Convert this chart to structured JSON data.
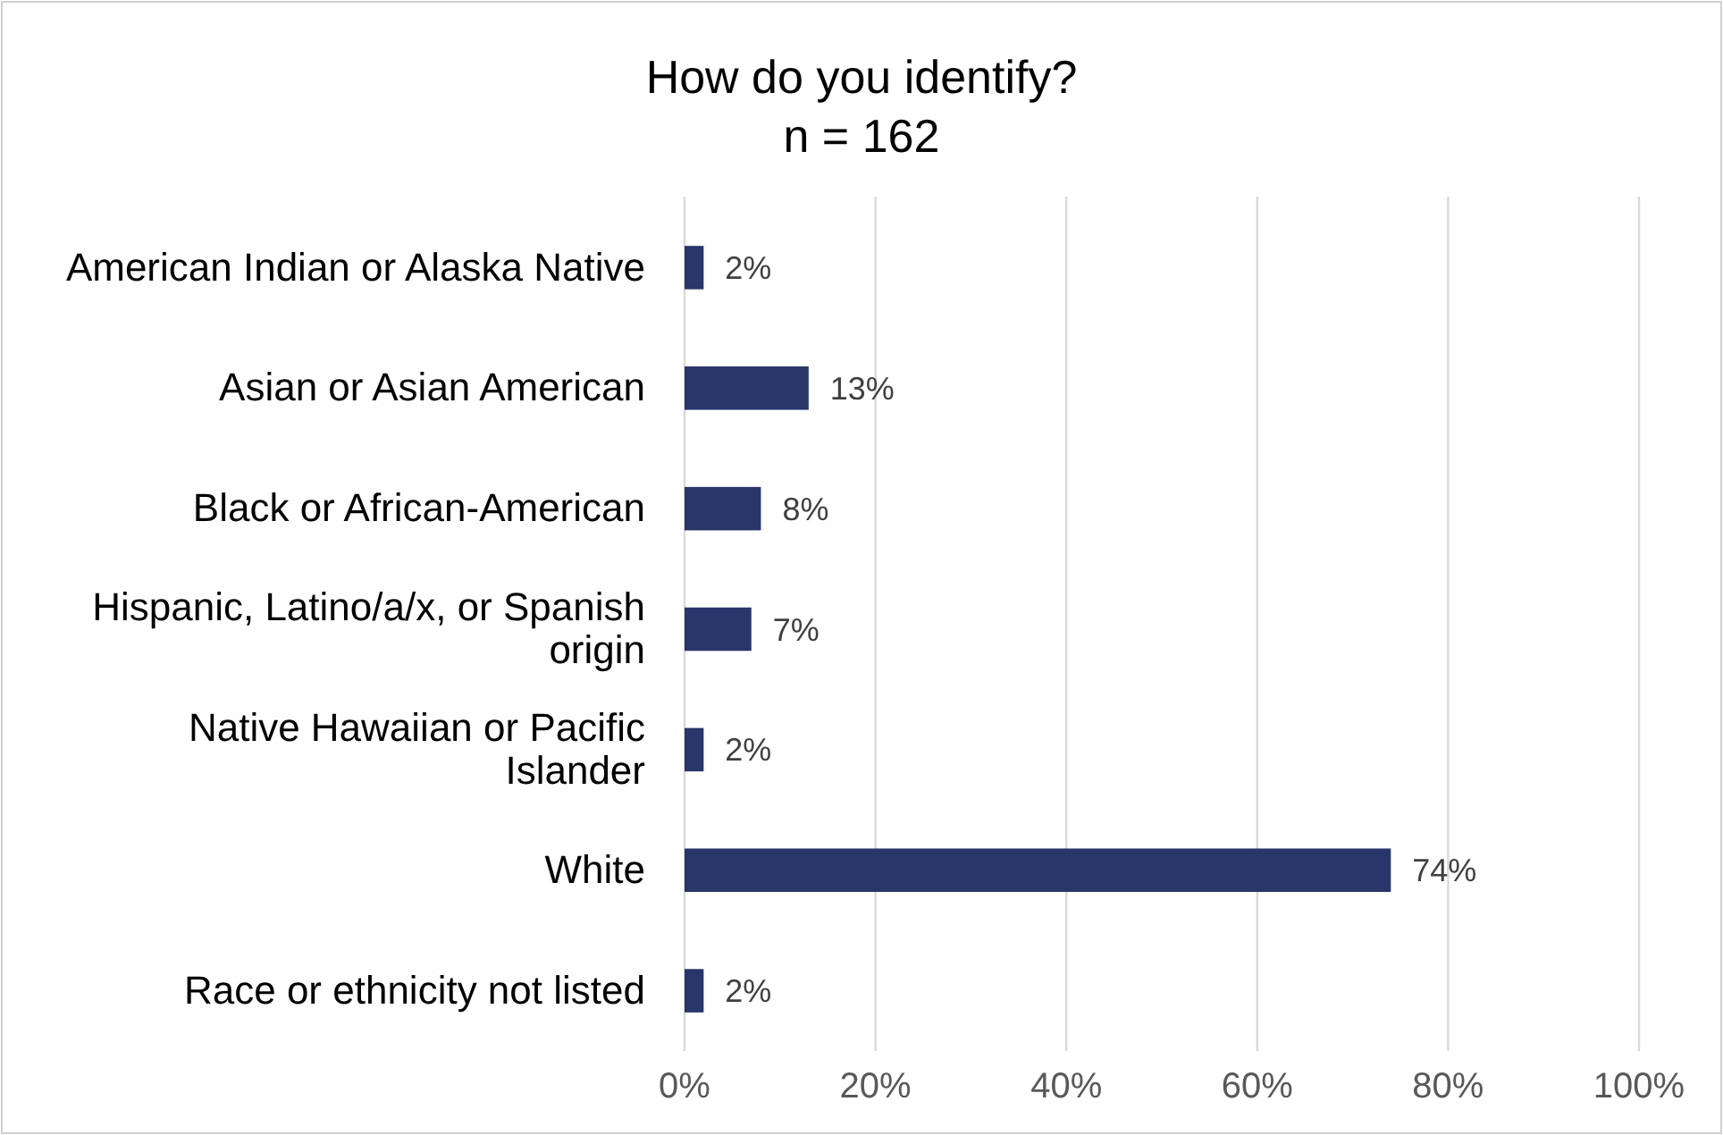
{
  "chart_data": {
    "type": "bar",
    "orientation": "horizontal",
    "title": "How do you identify?",
    "subtitle": "n = 162",
    "categories": [
      "American Indian or Alaska Native",
      "Asian or Asian American",
      "Black or African-American",
      "Hispanic, Latino/a/x, or Spanish origin",
      "Native Hawaiian or Pacific Islander",
      "White",
      "Race or ethnicity not listed"
    ],
    "values": [
      2,
      13,
      8,
      7,
      2,
      74,
      2
    ],
    "value_labels": [
      "2%",
      "13%",
      "8%",
      "7%",
      "2%",
      "74%",
      "2%"
    ],
    "color": "#283669",
    "xlim": [
      0,
      100
    ],
    "xticks": [
      {
        "value": 0,
        "label": "0%"
      },
      {
        "value": 20,
        "label": "20%"
      },
      {
        "value": 40,
        "label": "40%"
      },
      {
        "value": 60,
        "label": "60%"
      },
      {
        "value": 80,
        "label": "80%"
      },
      {
        "value": 100,
        "label": "100%"
      }
    ],
    "grid": "x"
  }
}
